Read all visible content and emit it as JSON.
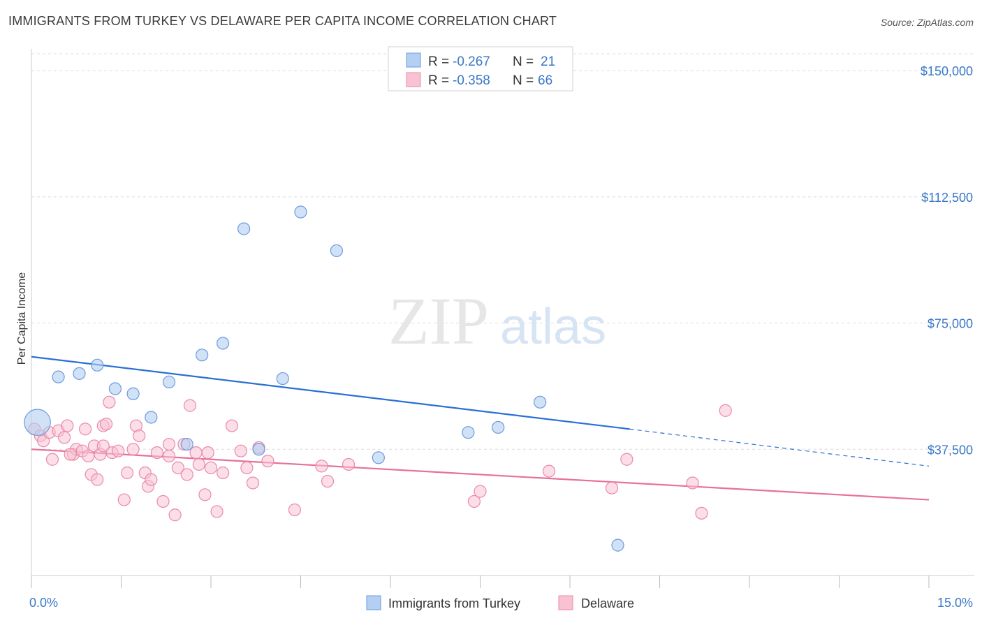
{
  "title": "IMMIGRANTS FROM TURKEY VS DELAWARE PER CAPITA INCOME CORRELATION CHART",
  "source": "Source: ZipAtlas.com",
  "watermark": {
    "zip": "ZIP",
    "atlas": "atlas"
  },
  "legend": {
    "rows": [
      {
        "r_label": "R = ",
        "r_value": "-0.267",
        "n_label": "N = ",
        "n_value": "21",
        "color": "#a9c8f0",
        "stroke": "#5b8fd6"
      },
      {
        "r_label": "R = ",
        "r_value": "-0.358",
        "n_label": "N = ",
        "n_value": "66",
        "color": "#f7b8cc",
        "stroke": "#e7769b"
      }
    ]
  },
  "colors": {
    "blue_fill": "#b3cff2",
    "blue_stroke": "#6b9be0",
    "blue_line": "#2a6fd4",
    "pink_fill": "#f8c2d3",
    "pink_stroke": "#ea8aa9",
    "pink_line": "#e8709a",
    "grid": "#dcdcdc",
    "axis_text": "#3a78c9"
  },
  "chart_data": {
    "type": "scatter",
    "title": "IMMIGRANTS FROM TURKEY VS DELAWARE PER CAPITA INCOME CORRELATION CHART",
    "xlabel": "",
    "ylabel": "Per Capita Income",
    "xlim": [
      0,
      15
    ],
    "ylim": [
      0,
      155000
    ],
    "x_tick_labels": [
      "0.0%",
      "15.0%"
    ],
    "y_ticks": [
      37500,
      75000,
      112500,
      150000
    ],
    "y_tick_labels": [
      "$37,500",
      "$75,000",
      "$112,500",
      "$150,000"
    ],
    "grid": true,
    "legend_position": "top-center",
    "series": [
      {
        "name": "Immigrants from Turkey",
        "points": [
          [
            0.1,
            45500,
            2.2
          ],
          [
            0.45,
            59000,
            1
          ],
          [
            0.8,
            60000,
            1
          ],
          [
            1.1,
            62500,
            1
          ],
          [
            1.4,
            55500,
            1
          ],
          [
            1.7,
            54000,
            1
          ],
          [
            2.0,
            47000,
            1
          ],
          [
            2.3,
            57500,
            1
          ],
          [
            2.6,
            39000,
            1
          ],
          [
            2.85,
            65500,
            1
          ],
          [
            3.2,
            69000,
            1
          ],
          [
            3.55,
            103000,
            1
          ],
          [
            3.8,
            37500,
            1
          ],
          [
            4.2,
            58500,
            1
          ],
          [
            4.5,
            108000,
            1
          ],
          [
            5.1,
            96500,
            1
          ],
          [
            5.8,
            35000,
            1
          ],
          [
            7.3,
            42500,
            1
          ],
          [
            7.8,
            44000,
            1
          ],
          [
            8.5,
            51500,
            1
          ],
          [
            9.8,
            9000,
            1
          ]
        ],
        "trend": {
          "x0": 0,
          "y0": 65000,
          "x1": 10.0,
          "y1": 43500,
          "dash_x1": 15,
          "dash_y1": 32500
        }
      },
      {
        "name": "Delaware",
        "points": [
          [
            0.05,
            43500
          ],
          [
            0.15,
            41500
          ],
          [
            0.2,
            40000
          ],
          [
            0.3,
            42500
          ],
          [
            0.35,
            34500
          ],
          [
            0.45,
            43000
          ],
          [
            0.55,
            41000
          ],
          [
            0.6,
            44500
          ],
          [
            0.7,
            36000
          ],
          [
            0.75,
            37500
          ],
          [
            0.85,
            37000
          ],
          [
            0.9,
            43500
          ],
          [
            0.95,
            35500
          ],
          [
            1.0,
            30000
          ],
          [
            1.05,
            38500
          ],
          [
            1.1,
            28500
          ],
          [
            1.15,
            36000
          ],
          [
            1.2,
            44500
          ],
          [
            1.25,
            45000
          ],
          [
            1.3,
            51500
          ],
          [
            1.35,
            36500
          ],
          [
            1.45,
            37000
          ],
          [
            1.55,
            22500
          ],
          [
            1.6,
            30500
          ],
          [
            1.7,
            37500
          ],
          [
            1.75,
            44500
          ],
          [
            1.8,
            41500
          ],
          [
            1.9,
            30500
          ],
          [
            1.95,
            26500
          ],
          [
            2.0,
            28500
          ],
          [
            2.1,
            36500
          ],
          [
            2.2,
            22000
          ],
          [
            2.3,
            35500
          ],
          [
            2.4,
            18000
          ],
          [
            2.45,
            32000
          ],
          [
            2.55,
            39000
          ],
          [
            2.6,
            30000
          ],
          [
            2.65,
            50500
          ],
          [
            2.75,
            36500
          ],
          [
            2.8,
            33000
          ],
          [
            2.9,
            24000
          ],
          [
            3.0,
            32000
          ],
          [
            3.1,
            19000
          ],
          [
            3.2,
            30500
          ],
          [
            3.35,
            44500
          ],
          [
            3.5,
            37000
          ],
          [
            3.6,
            32000
          ],
          [
            3.7,
            27500
          ],
          [
            3.95,
            34000
          ],
          [
            4.4,
            19500
          ],
          [
            4.85,
            32500
          ],
          [
            4.95,
            28000
          ],
          [
            5.3,
            33000
          ],
          [
            7.4,
            22000
          ],
          [
            7.5,
            25000
          ],
          [
            8.65,
            31000
          ],
          [
            9.7,
            26000
          ],
          [
            9.95,
            34500
          ],
          [
            11.05,
            27500
          ],
          [
            11.2,
            18500
          ],
          [
            11.6,
            49000
          ],
          [
            3.8,
            38000
          ],
          [
            2.3,
            39000
          ],
          [
            0.65,
            36000
          ],
          [
            1.2,
            38500
          ],
          [
            2.95,
            36500
          ]
        ],
        "trend": {
          "x0": 0,
          "y0": 37500,
          "x1": 15,
          "y1": 22500
        }
      }
    ]
  },
  "bottom_legend": {
    "items": [
      {
        "label": "Immigrants from Turkey"
      },
      {
        "label": "Delaware"
      }
    ]
  }
}
